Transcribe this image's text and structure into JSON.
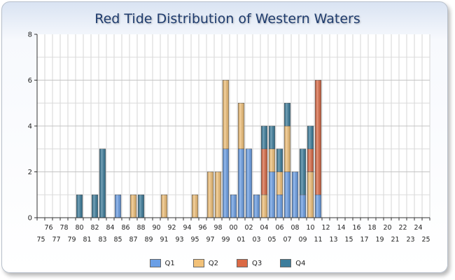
{
  "chart_data": {
    "type": "bar",
    "stacked": true,
    "title": "Red Tide Distribution of Western Waters",
    "xlabel": "",
    "ylabel": "",
    "ylim": [
      0,
      8
    ],
    "yticks": [
      "0",
      "2",
      "4",
      "6",
      "8"
    ],
    "grid": true,
    "legend_position": "bottom",
    "categories": [
      "75",
      "76",
      "77",
      "78",
      "79",
      "80",
      "81",
      "82",
      "83",
      "84",
      "85",
      "86",
      "87",
      "88",
      "89",
      "90",
      "91",
      "92",
      "93",
      "94",
      "95",
      "96",
      "97",
      "98",
      "99",
      "00",
      "01",
      "02",
      "03",
      "04",
      "05",
      "06",
      "07",
      "08",
      "09",
      "10",
      "11",
      "12",
      "13",
      "14",
      "15",
      "16",
      "17",
      "18",
      "19",
      "20",
      "21",
      "22",
      "23",
      "24",
      "25"
    ],
    "series": [
      {
        "name": "Q1",
        "color": "#6a9fe6",
        "values": [
          0,
          0,
          0,
          0,
          0,
          0,
          0,
          0,
          0,
          0,
          1,
          0,
          0,
          0,
          0,
          0,
          0,
          0,
          0,
          0,
          0,
          0,
          0,
          0,
          3,
          1,
          3,
          3,
          1,
          0,
          2,
          1,
          2,
          2,
          1,
          0,
          1,
          0,
          0,
          0,
          0,
          0,
          0,
          0,
          0,
          0,
          0,
          0,
          0,
          0,
          0
        ]
      },
      {
        "name": "Q2",
        "color": "#f2c178",
        "values": [
          0,
          0,
          0,
          0,
          0,
          0,
          0,
          0,
          0,
          0,
          0,
          0,
          1,
          0,
          0,
          0,
          1,
          0,
          0,
          0,
          1,
          0,
          2,
          2,
          3,
          0,
          2,
          0,
          0,
          1,
          1,
          1,
          2,
          0,
          0,
          2,
          0,
          0,
          0,
          0,
          0,
          0,
          0,
          0,
          0,
          0,
          0,
          0,
          0,
          0,
          0
        ]
      },
      {
        "name": "Q3",
        "color": "#db6a45",
        "values": [
          0,
          0,
          0,
          0,
          0,
          0,
          0,
          0,
          0,
          0,
          0,
          0,
          0,
          0,
          0,
          0,
          0,
          0,
          0,
          0,
          0,
          0,
          0,
          0,
          0,
          0,
          0,
          0,
          0,
          2,
          0,
          0,
          0,
          0,
          0,
          1,
          5,
          0,
          0,
          0,
          0,
          0,
          0,
          0,
          0,
          0,
          0,
          0,
          0,
          0,
          0
        ]
      },
      {
        "name": "Q4",
        "color": "#3c7d9c",
        "values": [
          0,
          0,
          0,
          0,
          0,
          1,
          0,
          1,
          3,
          0,
          0,
          0,
          0,
          1,
          0,
          0,
          0,
          0,
          0,
          0,
          0,
          0,
          0,
          0,
          0,
          0,
          0,
          0,
          0,
          1,
          1,
          1,
          1,
          0,
          2,
          1,
          0,
          0,
          0,
          0,
          0,
          0,
          0,
          0,
          0,
          0,
          0,
          0,
          0,
          0,
          0
        ]
      }
    ]
  }
}
